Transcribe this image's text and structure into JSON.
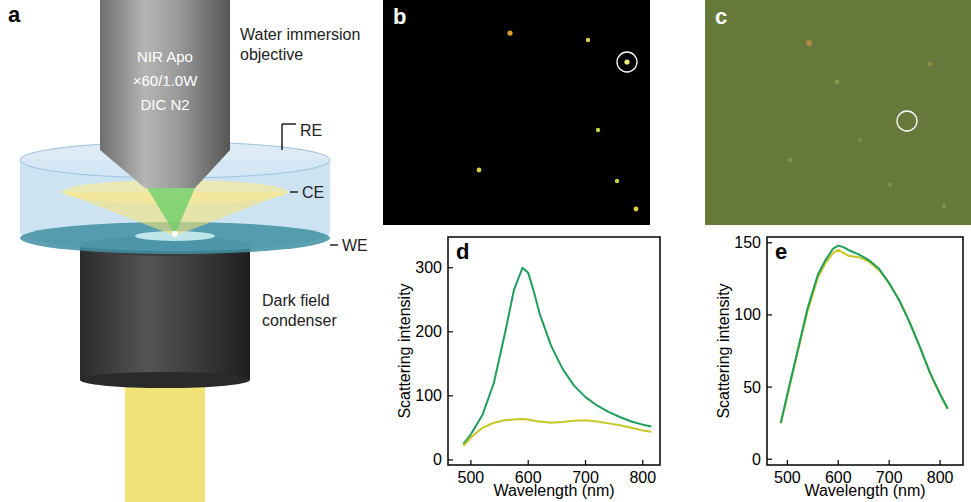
{
  "figure": {
    "diagram": {
      "panel": "a",
      "objective_text": [
        "NIR Apo",
        "×60/1.0W",
        "DIC N2"
      ],
      "objective_label": [
        "Water immersion",
        "objective"
      ],
      "re": "RE",
      "ce": "CE",
      "we": "WE",
      "condenser_label": [
        "Dark field",
        "condenser"
      ]
    },
    "images": [
      {
        "panel": "b"
      },
      {
        "panel": "c"
      }
    ]
  },
  "chart_data": [
    {
      "type": "line",
      "panel": "d",
      "x_label": "Wavelength (nm)",
      "y_label": "Scattering intensity",
      "x": [
        487,
        500,
        520,
        540,
        560,
        575,
        590,
        600,
        610,
        620,
        640,
        660,
        680,
        700,
        720,
        740,
        760,
        780,
        800,
        815
      ],
      "series": [
        {
          "color": "#1f9e5a",
          "values": [
            25,
            40,
            70,
            120,
            200,
            265,
            300,
            292,
            262,
            228,
            178,
            142,
            116,
            98,
            85,
            75,
            67,
            60,
            55,
            52
          ]
        },
        {
          "color": "#c9c624",
          "values": [
            22,
            35,
            50,
            58,
            62,
            63,
            64,
            63,
            61,
            60,
            58,
            59,
            61,
            62,
            60,
            57,
            54,
            50,
            46,
            44
          ]
        }
      ],
      "xlim": [
        460,
        830
      ],
      "xticks": [
        500,
        600,
        700,
        800
      ],
      "ylim": [
        -8,
        348
      ],
      "yticks": [
        0,
        100,
        200,
        300
      ],
      "grid": false
    },
    {
      "type": "line",
      "panel": "e",
      "x_label": "Wavelength (nm)",
      "y_label": "Scattering intensity",
      "x": [
        487,
        500,
        520,
        540,
        560,
        575,
        590,
        600,
        610,
        620,
        640,
        660,
        680,
        700,
        720,
        740,
        760,
        780,
        800,
        815
      ],
      "series": [
        {
          "color": "#c9c624",
          "values": [
            25,
            44,
            74,
            103,
            126,
            136,
            143,
            145,
            143,
            141,
            140,
            137,
            131,
            122,
            110,
            95,
            78,
            60,
            45,
            35
          ]
        },
        {
          "color": "#1f9e5a",
          "values": [
            25,
            45,
            75,
            105,
            128,
            138,
            146,
            148,
            147,
            145,
            142,
            138,
            132,
            122,
            110,
            95,
            78,
            60,
            45,
            35
          ]
        }
      ],
      "xlim": [
        460,
        845
      ],
      "xticks": [
        500,
        600,
        700,
        800
      ],
      "ylim": [
        -4,
        154
      ],
      "yticks": [
        0,
        50,
        100,
        150
      ],
      "grid": false
    }
  ]
}
